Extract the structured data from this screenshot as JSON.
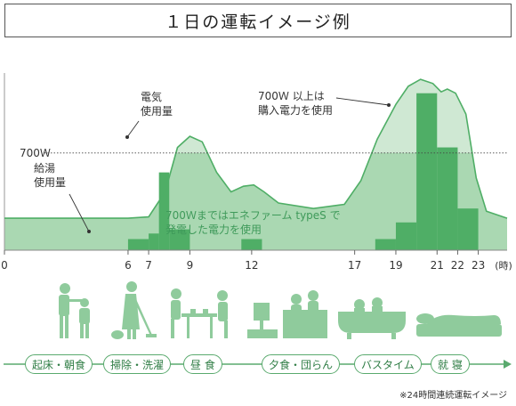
{
  "header": {
    "title": "１日の運転イメージ例"
  },
  "chart_data": {
    "type": "area",
    "unit_label": "(時)",
    "reference_line": {
      "label": "700Ｗ",
      "value": 700
    },
    "x_ticks": [
      0,
      6,
      7,
      9,
      12,
      17,
      19,
      21,
      22,
      23
    ],
    "xlim": [
      0,
      24.4
    ],
    "ylim": [
      0,
      1250
    ],
    "baseline_fill": {
      "label": "700Ｗまではエネファーム typeS で\n発電した電力を使用",
      "value": 700
    },
    "electricity_usage": {
      "label": "電気\n使用量",
      "curve": [
        [
          0,
          230
        ],
        [
          6,
          230
        ],
        [
          7,
          240
        ],
        [
          7.8,
          420
        ],
        [
          8.4,
          740
        ],
        [
          9,
          820
        ],
        [
          9.6,
          780
        ],
        [
          10.3,
          560
        ],
        [
          11,
          420
        ],
        [
          11.6,
          460
        ],
        [
          12.1,
          470
        ],
        [
          12.6,
          420
        ],
        [
          13.3,
          340
        ],
        [
          15,
          300
        ],
        [
          16.5,
          330
        ],
        [
          17.3,
          500
        ],
        [
          18.1,
          800
        ],
        [
          19,
          1050
        ],
        [
          19.6,
          1180
        ],
        [
          20.2,
          1230
        ],
        [
          20.8,
          1200
        ],
        [
          21.2,
          1140
        ],
        [
          21.5,
          1160
        ],
        [
          21.9,
          1130
        ],
        [
          22.4,
          980
        ],
        [
          22.9,
          520
        ],
        [
          23.4,
          280
        ],
        [
          24.4,
          230
        ]
      ]
    },
    "hot_water_usage": {
      "label": "給湯\n使用量",
      "bars": [
        {
          "start": 6,
          "end": 7,
          "value": 80
        },
        {
          "start": 7,
          "end": 7.5,
          "value": 120
        },
        {
          "start": 7.5,
          "end": 8,
          "value": 560
        },
        {
          "start": 8,
          "end": 9,
          "value": 150
        },
        {
          "start": 11.5,
          "end": 12.5,
          "value": 80
        },
        {
          "start": 18,
          "end": 19,
          "value": 80
        },
        {
          "start": 19,
          "end": 20,
          "value": 200
        },
        {
          "start": 20,
          "end": 21,
          "value": 1130
        },
        {
          "start": 21,
          "end": 22,
          "value": 740
        },
        {
          "start": 22,
          "end": 23,
          "value": 300
        }
      ]
    },
    "purchase_annotation": {
      "label": "700Ｗ 以上は\n購入電力を使用"
    }
  },
  "activities": [
    {
      "label": "起床・朝食",
      "icon": "waking-breakfast-icon"
    },
    {
      "label": "掃除・洗濯",
      "icon": "cleaning-laundry-icon"
    },
    {
      "label": "昼 食",
      "icon": "lunch-icon"
    },
    {
      "label": "夕食・団らん",
      "icon": "dinner-family-icon"
    },
    {
      "label": "バスタイム",
      "icon": "bathtub-icon"
    },
    {
      "label": "就 寝",
      "icon": "sleeping-icon"
    }
  ],
  "footnote": "※24時間連続運転イメージ",
  "colors": {
    "fill_light": "#cfe8d3",
    "fill_mid": "#8ccb98",
    "bar": "#4fae66",
    "line": "#4fae66",
    "silhouette": "#8fcb9c",
    "text_green": "#3f9a5a"
  }
}
